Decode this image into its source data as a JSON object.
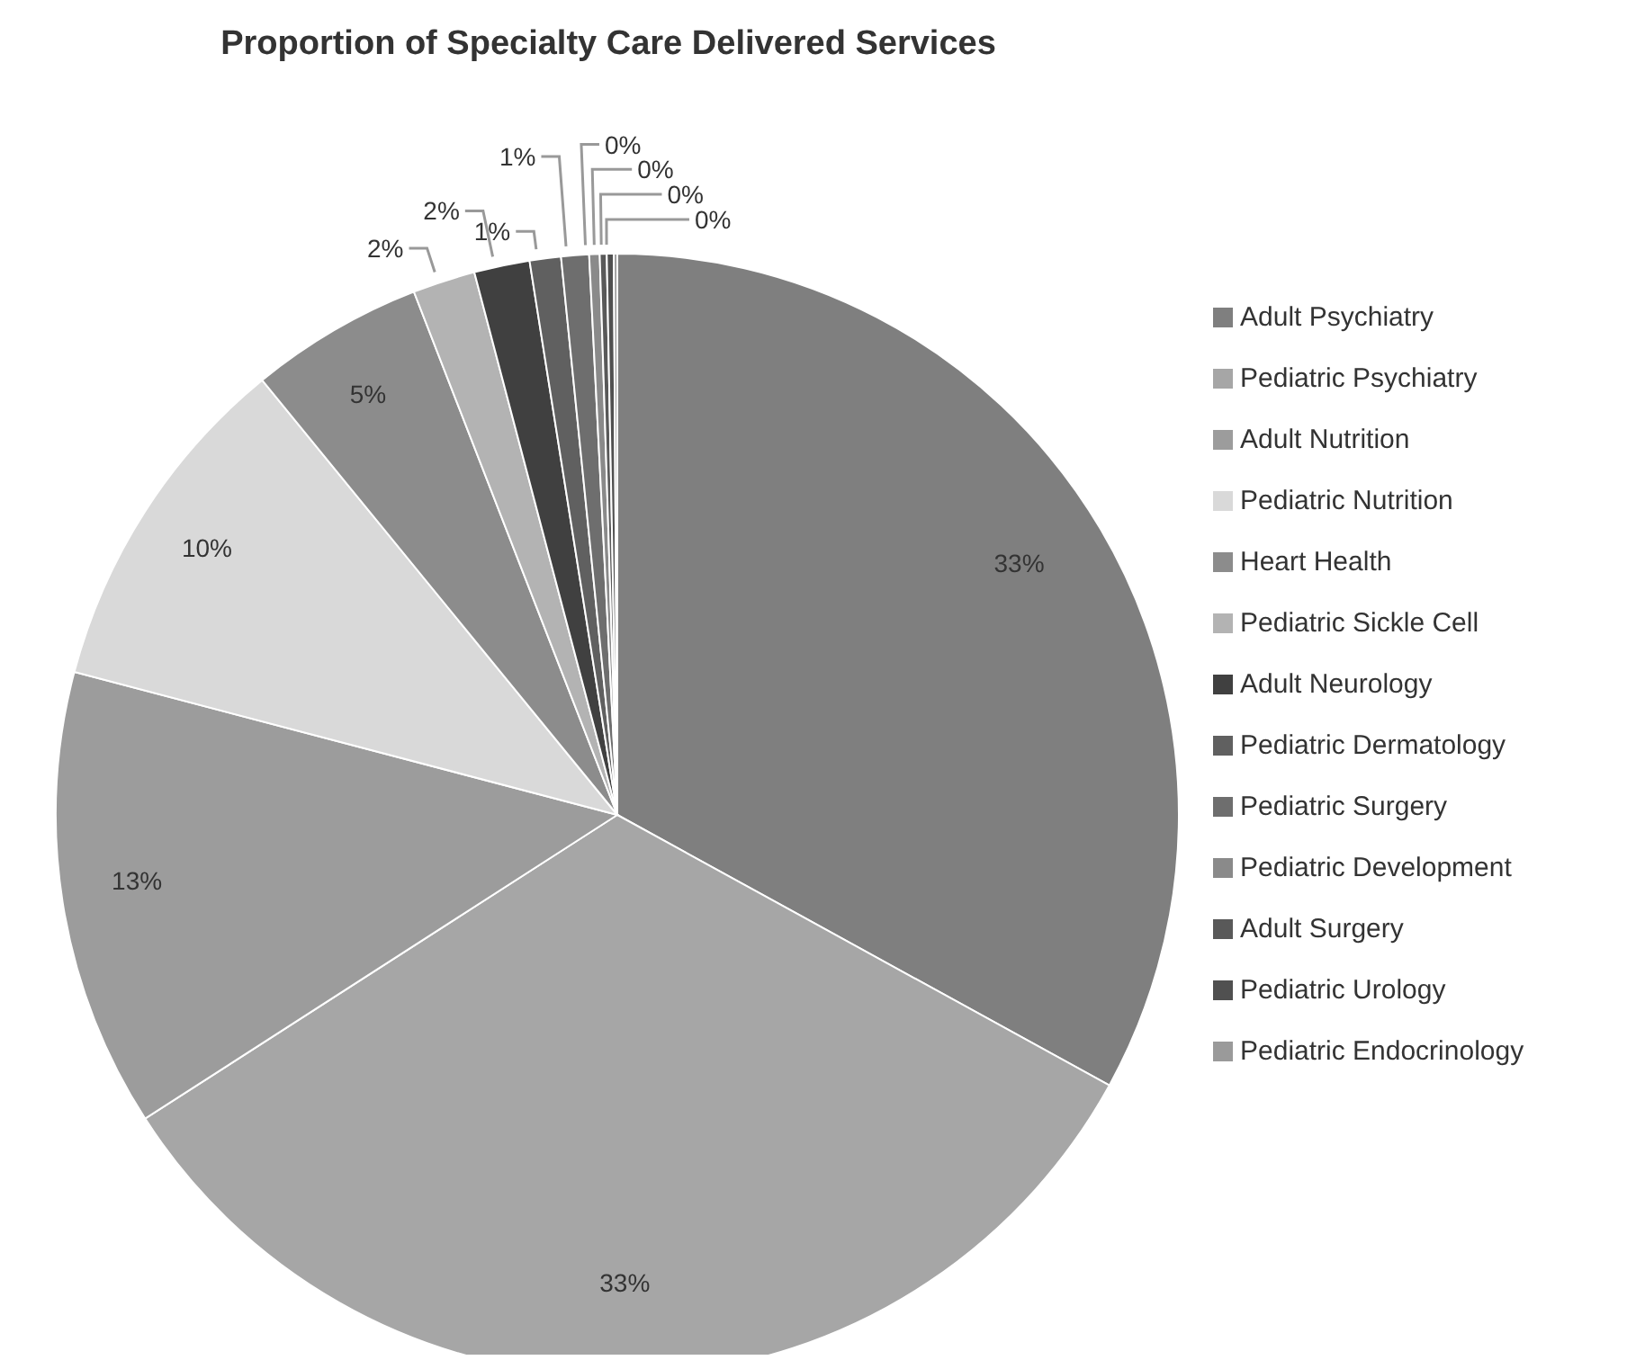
{
  "chart_data": {
    "type": "pie",
    "title": "Proportion of Specialty Care Delivered Services",
    "categories": [
      "Adult Psychiatry",
      "Pediatric Psychiatry",
      "Adult Nutrition",
      "Pediatric Nutrition",
      "Heart Health",
      "Pediatric Sickle Cell",
      "Adult Neurology",
      "Pediatric Dermatology",
      "Pediatric Surgery",
      "Pediatric Development",
      "Adult Surgery",
      "Pediatric Urology",
      "Pediatric Endocrinology"
    ],
    "values": [
      33.0,
      32.9,
      13.2,
      10.0,
      5.0,
      1.8,
      1.6,
      0.9,
      0.8,
      0.3,
      0.2,
      0.2,
      0.1
    ],
    "value_labels": [
      "33%",
      "33%",
      "13%",
      "10%",
      "5%",
      "2%",
      "2%",
      "1%",
      "1%",
      "0%",
      "0%",
      "0%",
      "0%"
    ],
    "colors": [
      "#7f7f7f",
      "#a6a6a6",
      "#9c9c9c",
      "#d9d9d9",
      "#8c8c8c",
      "#b3b3b3",
      "#404040",
      "#606060",
      "#6e6e6e",
      "#8a8a8a",
      "#595959",
      "#505050",
      "#9a9a9a"
    ],
    "legend": "right"
  }
}
